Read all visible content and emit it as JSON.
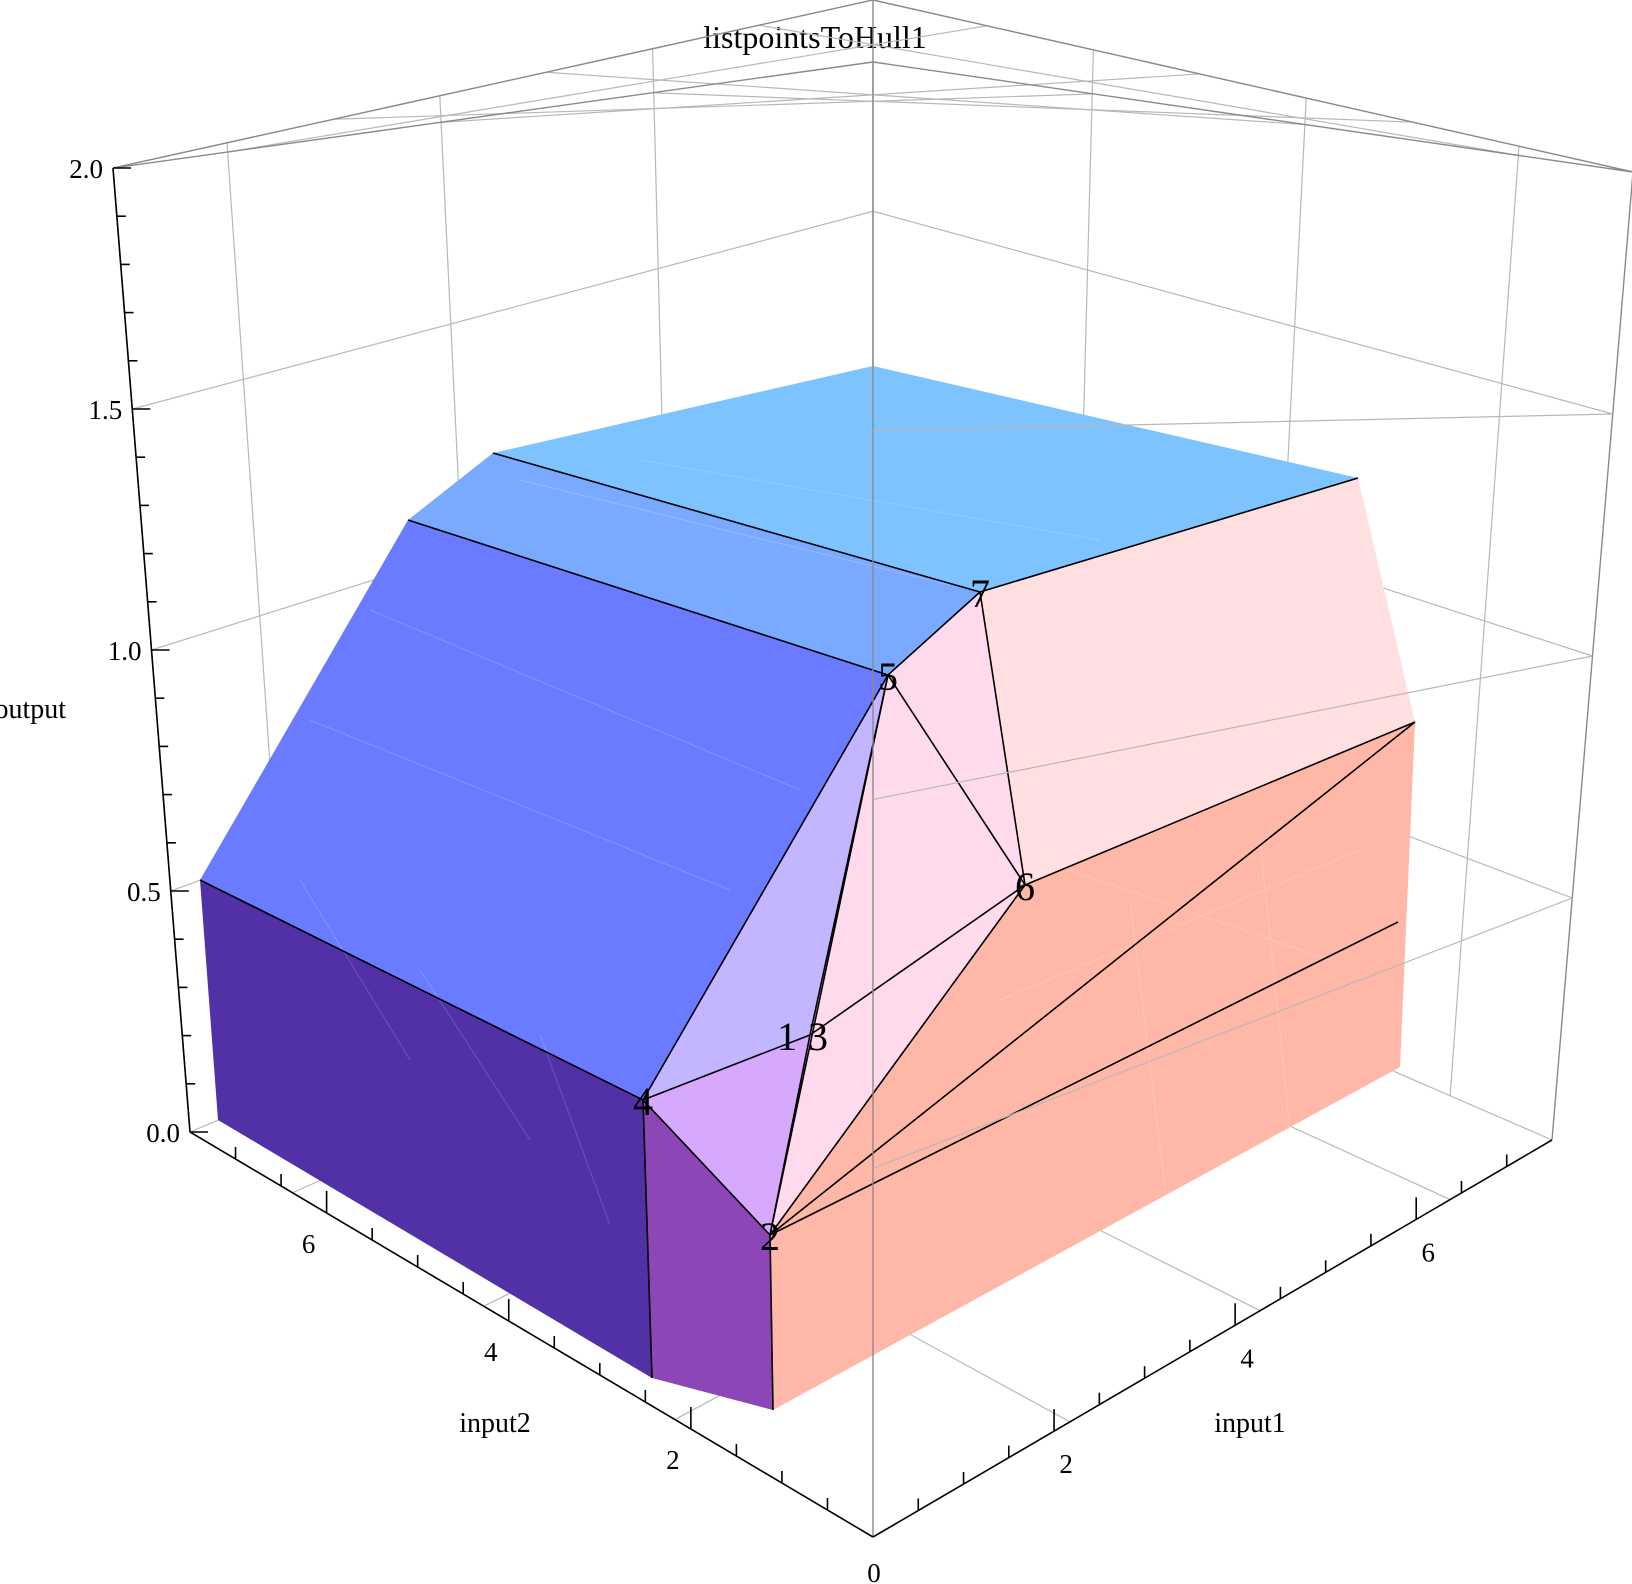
{
  "chart_data": {
    "type": "surface3d",
    "title": "listpointsToHull1",
    "axes": {
      "x": {
        "label": "input1",
        "range": [
          0,
          7.5
        ],
        "ticks": [
          "2",
          "4",
          "6"
        ]
      },
      "y": {
        "label": "input2",
        "range": [
          0,
          7.5
        ],
        "ticks": [
          "2",
          "4",
          "6"
        ]
      },
      "z": {
        "label": "output",
        "range": [
          0,
          2
        ],
        "ticks": [
          "0.0",
          "0.5",
          "1.0",
          "1.5",
          "2.0"
        ]
      },
      "origin_label": "0"
    },
    "points": [
      {
        "label": "1",
        "x": 1.2,
        "y": 1.2,
        "z": 0.25
      },
      {
        "label": "2",
        "x": 1,
        "y": 1,
        "z": 0
      },
      {
        "label": "3",
        "x": 1.4,
        "y": 1.2,
        "z": 0.25
      },
      {
        "label": "4",
        "x": 1,
        "y": 2,
        "z": 0
      },
      {
        "label": "5",
        "x": 2,
        "y": 2,
        "z": 1
      },
      {
        "label": "6",
        "x": 2,
        "y": 1,
        "z": 0
      },
      {
        "label": "7",
        "x": 3,
        "y": 2,
        "z": 1
      }
    ],
    "face_colors": {
      "top": "#7cc3ff",
      "top_bevel": "#7aaaff",
      "left_slope": "#6b7bff",
      "left_wall": "#5230a6",
      "front_wall": "#8d46b6",
      "front_left_facet": "#d6a9ff",
      "front_upper_facet": "#c3b5ff",
      "center_facet": "#f7cfff",
      "center_facet_2": "#ffd9ec",
      "right_upper": "#ffdfdf",
      "right_lower": "#ffb8a8",
      "right_bevel": "#ffc8ba"
    }
  }
}
